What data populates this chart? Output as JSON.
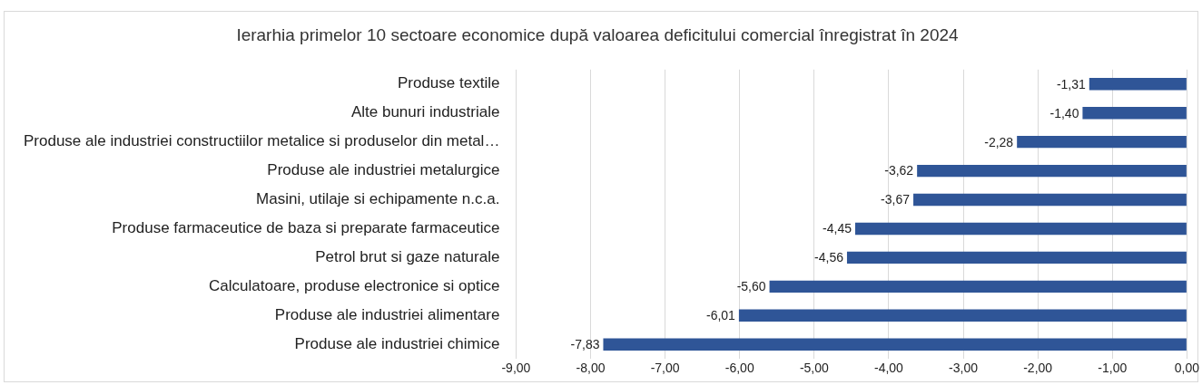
{
  "chart_data": {
    "type": "bar",
    "orientation": "horizontal",
    "title": "Ierarhia primelor 10 sectoare economice după valoarea deficitului comercial înregistrat în 2024",
    "categories": [
      "Produse textile",
      "Alte bunuri industriale",
      "Produse ale industriei constructiilor metalice si produselor din metal…",
      "Produse ale industriei metalurgice",
      "Masini, utilaje si echipamente n.c.a.",
      "Produse farmaceutice de baza si preparate farmaceutice",
      "Petrol brut si gaze naturale",
      "Calculatoare, produse electronice si optice",
      "Produse ale industriei alimentare",
      "Produse ale industriei chimice"
    ],
    "values": [
      -1.31,
      -1.4,
      -2.28,
      -3.62,
      -3.67,
      -4.45,
      -4.56,
      -5.6,
      -6.01,
      -7.83
    ],
    "value_labels": [
      "-1,31",
      "-1,40",
      "-2,28",
      "-3,62",
      "-3,67",
      "-4,45",
      "-4,56",
      "-5,60",
      "-6,01",
      "-7,83"
    ],
    "color": "#2f5597",
    "xlim": [
      -9,
      0
    ],
    "xticks": [
      {
        "value": -9,
        "label": "-9,00"
      },
      {
        "value": -8,
        "label": "-8,00"
      },
      {
        "value": -7,
        "label": "-7,00"
      },
      {
        "value": -6,
        "label": "-6,00"
      },
      {
        "value": -5,
        "label": "-5,00"
      },
      {
        "value": -4,
        "label": "-4,00"
      },
      {
        "value": -3,
        "label": "-3,00"
      },
      {
        "value": -2,
        "label": "-2,00"
      },
      {
        "value": -1,
        "label": "-1,00"
      },
      {
        "value": 0,
        "label": "0,00"
      }
    ],
    "grid": "x",
    "legend": false
  }
}
